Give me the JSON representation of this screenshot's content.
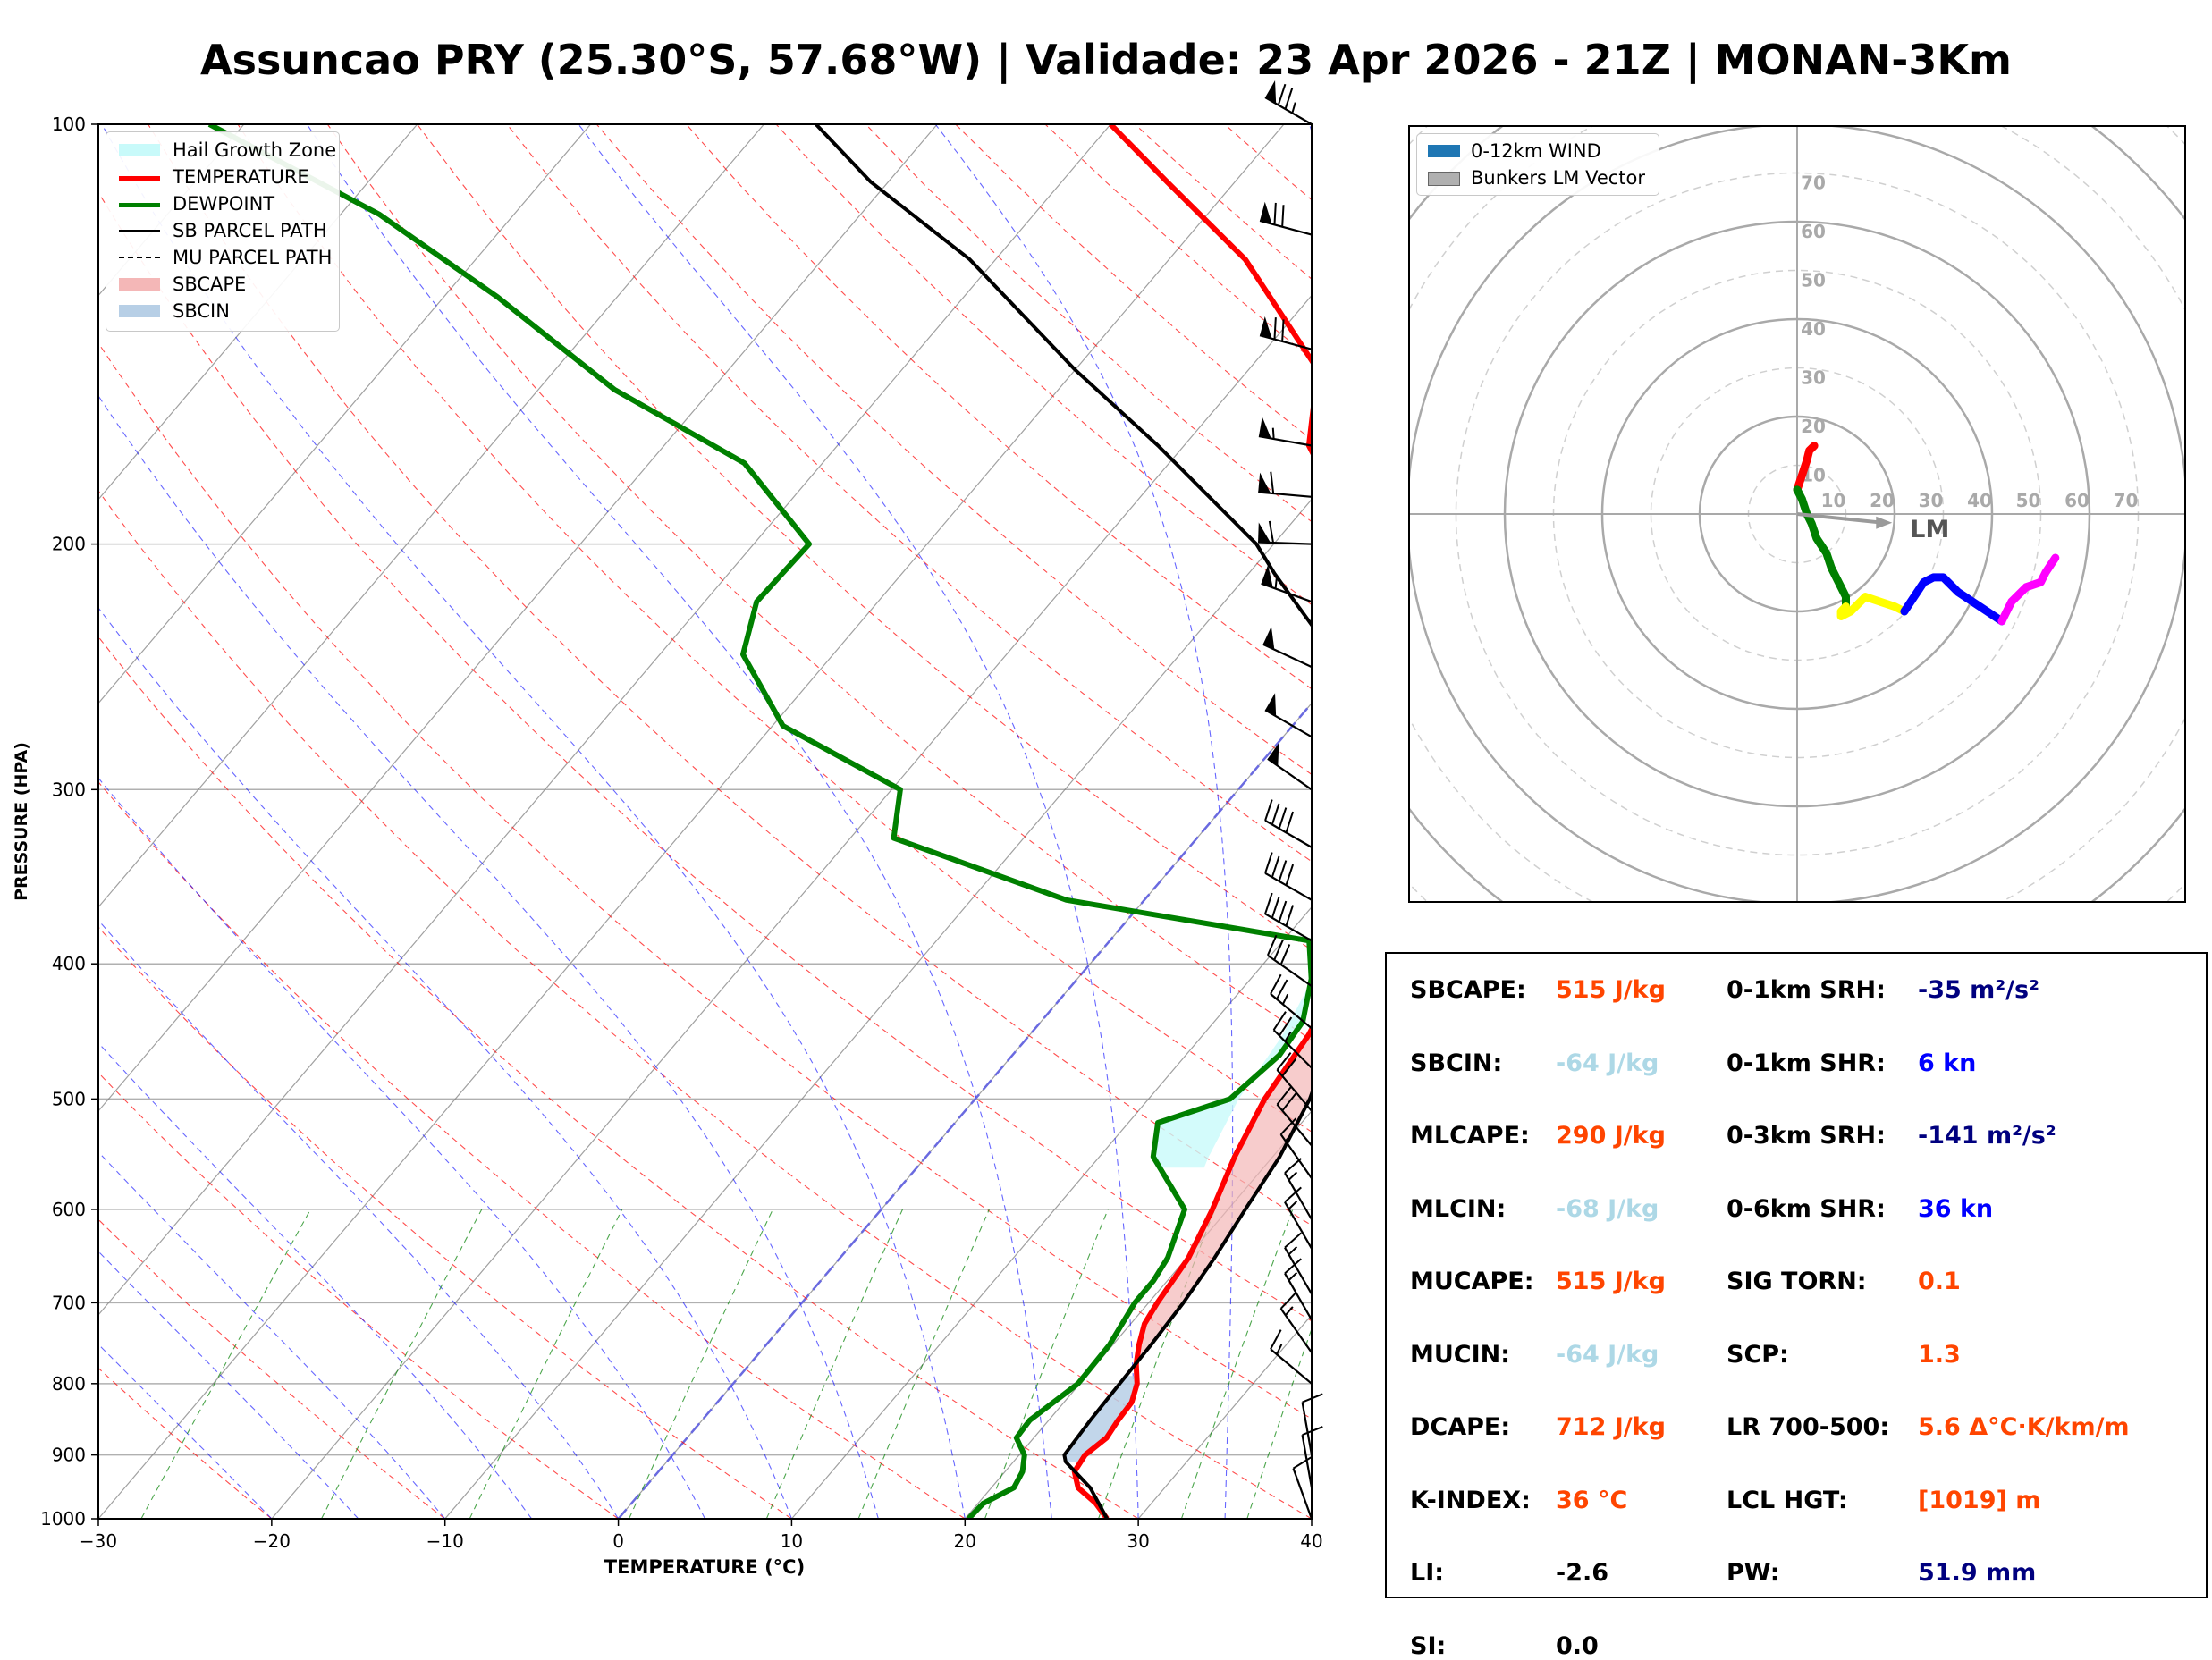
{
  "title": "Assuncao PRY (25.30°S, 57.68°W) | Validade: 23 Apr 2026 - 21Z | MONAN-3Km",
  "colors": {
    "temperature": "#ff0000",
    "dewpoint": "#008000",
    "parcel": "#000000",
    "sbcape": "#f4b7b7",
    "sbcin": "#b7cfe6",
    "hail_zone": "#c8fafa",
    "dry_adiabat": "#ff0000",
    "moist_adiabat": "#0000ff",
    "mixing_ratio": "#008000",
    "isotherm": "#808080",
    "val_orange": "#ff4500",
    "val_lightblue": "#add8e6",
    "val_navy": "#00007f",
    "val_blue": "#0000ff",
    "val_black": "#000000"
  },
  "chart_data": [
    {
      "type": "line",
      "subtype": "skew-T log-P",
      "xlabel": "TEMPERATURE (°C)",
      "ylabel": "PRESSURE (HPA)",
      "xlim": [
        -30,
        40
      ],
      "ylim": [
        1000,
        100
      ],
      "yscale": "log",
      "x_ticks": [
        "−30",
        "−20",
        "−10",
        "0",
        "10",
        "20",
        "30",
        "40"
      ],
      "y_ticks": [
        100,
        200,
        300,
        400,
        500,
        600,
        700,
        800,
        900,
        1000
      ],
      "legend": {
        "position": "top-left",
        "entries": [
          "Hail Growth Zone",
          "TEMPERATURE",
          "DEWPOINT",
          "SB PARCEL PATH",
          "MU PARCEL PATH",
          "SBCAPE",
          "SBCIN"
        ]
      },
      "series": [
        {
          "name": "TEMPERATURE",
          "points": [
            [
              1000,
              28.2
            ],
            [
              975,
              26.8
            ],
            [
              950,
              25.0
            ],
            [
              925,
              24.0
            ],
            [
              900,
              23.8
            ],
            [
              875,
              24.2
            ],
            [
              850,
              24.0
            ],
            [
              825,
              23.9
            ],
            [
              800,
              23.3
            ],
            [
              775,
              22.3
            ],
            [
              750,
              21.5
            ],
            [
              725,
              20.8
            ],
            [
              700,
              20.5
            ],
            [
              650,
              20.1
            ],
            [
              600,
              19.1
            ],
            [
              550,
              17.8
            ],
            [
              500,
              16.7
            ],
            [
              450,
              16.1
            ],
            [
              400,
              14.8
            ],
            [
              350,
              12.5
            ],
            [
              300,
              8.2
            ],
            [
              250,
              2.2
            ],
            [
              210,
              -2.7
            ],
            [
              170,
              -12.8
            ],
            [
              150,
              -16.0
            ],
            [
              125,
              -25.6
            ],
            [
              110,
              -33.9
            ],
            [
              100,
              -40.0
            ]
          ]
        },
        {
          "name": "DEWPOINT",
          "points": [
            [
              1000,
              20.2
            ],
            [
              975,
              20.3
            ],
            [
              950,
              21.3
            ],
            [
              925,
              21.0
            ],
            [
              900,
              20.3
            ],
            [
              875,
              19.0
            ],
            [
              850,
              18.9
            ],
            [
              800,
              19.9
            ],
            [
              750,
              19.8
            ],
            [
              700,
              19.2
            ],
            [
              675,
              19.2
            ],
            [
              650,
              18.9
            ],
            [
              600,
              17.5
            ],
            [
              550,
              13.1
            ],
            [
              520,
              11.7
            ],
            [
              500,
              14.7
            ],
            [
              465,
              15.4
            ],
            [
              440,
              15.1
            ],
            [
              410,
              13.5
            ],
            [
              385,
              11.5
            ],
            [
              360,
              -4.5
            ],
            [
              325,
              -17.5
            ],
            [
              300,
              -19.5
            ],
            [
              270,
              -29.4
            ],
            [
              240,
              -35.2
            ],
            [
              220,
              -37.0
            ],
            [
              200,
              -36.8
            ],
            [
              175,
              -44.5
            ],
            [
              155,
              -55.6
            ],
            [
              133,
              -66.9
            ],
            [
              116,
              -77.8
            ],
            [
              100,
              -92.0
            ]
          ]
        },
        {
          "name": "SB PARCEL PATH",
          "points": [
            [
              1000,
              28.2
            ],
            [
              950,
              25.7
            ],
            [
              910,
              23.0
            ],
            [
              900,
              22.6
            ],
            [
              850,
              22.4
            ],
            [
              800,
              22.3
            ],
            [
              750,
              22.2
            ],
            [
              700,
              22.0
            ],
            [
              650,
              21.6
            ],
            [
              600,
              21.0
            ],
            [
              550,
              20.4
            ],
            [
              500,
              19.3
            ],
            [
              450,
              17.5
            ],
            [
              400,
              14.8
            ],
            [
              350,
              11.2
            ],
            [
              300,
              6.5
            ],
            [
              270,
              2.6
            ],
            [
              250,
              -0.5
            ],
            [
              230,
              -3.5
            ],
            [
              210,
              -8.5
            ],
            [
              200,
              -11.0
            ],
            [
              170,
              -21.5
            ],
            [
              150,
              -30.0
            ],
            [
              125,
              -41.5
            ],
            [
              110,
              -51.0
            ],
            [
              100,
              -57.0
            ]
          ]
        }
      ],
      "barbs": [
        {
          "p": 100,
          "dir": 300,
          "kt": 75
        },
        {
          "p": 120,
          "dir": 285,
          "kt": 70
        },
        {
          "p": 145,
          "dir": 285,
          "kt": 70
        },
        {
          "p": 170,
          "dir": 280,
          "kt": 55
        },
        {
          "p": 185,
          "dir": 275,
          "kt": 60
        },
        {
          "p": 200,
          "dir": 272,
          "kt": 60
        },
        {
          "p": 220,
          "dir": 290,
          "kt": 55
        },
        {
          "p": 245,
          "dir": 295,
          "kt": 50
        },
        {
          "p": 275,
          "dir": 300,
          "kt": 50
        },
        {
          "p": 300,
          "dir": 305,
          "kt": 50
        },
        {
          "p": 330,
          "dir": 300,
          "kt": 40
        },
        {
          "p": 360,
          "dir": 300,
          "kt": 40
        },
        {
          "p": 385,
          "dir": 300,
          "kt": 40
        },
        {
          "p": 415,
          "dir": 305,
          "kt": 30
        },
        {
          "p": 445,
          "dir": 310,
          "kt": 25
        },
        {
          "p": 475,
          "dir": 315,
          "kt": 25
        },
        {
          "p": 510,
          "dir": 320,
          "kt": 20
        },
        {
          "p": 540,
          "dir": 320,
          "kt": 20
        },
        {
          "p": 570,
          "dir": 325,
          "kt": 15
        },
        {
          "p": 610,
          "dir": 330,
          "kt": 15
        },
        {
          "p": 640,
          "dir": 330,
          "kt": 15
        },
        {
          "p": 690,
          "dir": 330,
          "kt": 15
        },
        {
          "p": 720,
          "dir": 330,
          "kt": 15
        },
        {
          "p": 760,
          "dir": 325,
          "kt": 15
        },
        {
          "p": 800,
          "dir": 310,
          "kt": 15
        },
        {
          "p": 900,
          "dir": 350,
          "kt": 10
        },
        {
          "p": 950,
          "dir": 350,
          "kt": 10
        },
        {
          "p": 1000,
          "dir": 340,
          "kt": 10
        }
      ]
    },
    {
      "type": "line",
      "subtype": "hodograph",
      "rings": [
        10,
        20,
        30,
        40,
        50,
        60,
        70
      ],
      "legend": {
        "position": "top-left",
        "entries": [
          "0-12km WIND",
          "Bunkers LM Vector"
        ]
      },
      "lm_label": "LM",
      "lm_vector": [
        19.5,
        -1.8
      ],
      "segments": [
        {
          "color": "#ff0000",
          "uv": [
            [
              0,
              5
            ],
            [
              1,
              8
            ],
            [
              2,
              11
            ],
            [
              2.5,
              13
            ],
            [
              3.5,
              14
            ]
          ]
        },
        {
          "color": "#008000",
          "uv": [
            [
              0,
              5
            ],
            [
              1,
              3
            ],
            [
              2,
              0
            ],
            [
              3,
              -2
            ],
            [
              4,
              -5
            ],
            [
              6,
              -8
            ],
            [
              7,
              -11
            ],
            [
              8,
              -13
            ],
            [
              9,
              -15
            ],
            [
              10,
              -17
            ],
            [
              10,
              -19
            ]
          ]
        },
        {
          "color": "#ffff00",
          "uv": [
            [
              10,
              -19
            ],
            [
              9,
              -20
            ],
            [
              9,
              -21
            ],
            [
              11,
              -20
            ],
            [
              14,
              -17
            ],
            [
              17,
              -18
            ],
            [
              20,
              -19
            ],
            [
              22,
              -20
            ]
          ]
        },
        {
          "color": "#0000ff",
          "uv": [
            [
              22,
              -20
            ],
            [
              24,
              -17
            ],
            [
              26,
              -14
            ],
            [
              28,
              -13
            ],
            [
              30,
              -13
            ],
            [
              31,
              -14
            ],
            [
              33,
              -16
            ],
            [
              36,
              -18
            ],
            [
              39,
              -20
            ],
            [
              42,
              -22
            ]
          ]
        },
        {
          "color": "#ff00ff",
          "uv": [
            [
              42,
              -22
            ],
            [
              44,
              -18
            ],
            [
              47,
              -15
            ],
            [
              50,
              -14
            ],
            [
              51,
              -12
            ],
            [
              53,
              -9
            ]
          ]
        }
      ]
    }
  ],
  "params": {
    "left": [
      {
        "label": "SBCAPE:",
        "value": "515 J/kg",
        "color": "#ff4500"
      },
      {
        "label": "SBCIN:",
        "value": "-64 J/kg",
        "color": "#add8e6"
      },
      {
        "label": "MLCAPE:",
        "value": "290 J/kg",
        "color": "#ff4500"
      },
      {
        "label": "MLCIN:",
        "value": "-68 J/kg",
        "color": "#add8e6"
      },
      {
        "label": "MUCAPE:",
        "value": "515 J/kg",
        "color": "#ff4500"
      },
      {
        "label": "MUCIN:",
        "value": "-64 J/kg",
        "color": "#add8e6"
      },
      {
        "label": "DCAPE:",
        "value": "712 J/kg",
        "color": "#ff4500"
      },
      {
        "label": "K-INDEX:",
        "value": "36 °C",
        "color": "#ff4500"
      },
      {
        "label": "LI:",
        "value": "-2.6",
        "color": "#000000"
      },
      {
        "label": "SI:",
        "value": "0.0",
        "color": "#000000"
      }
    ],
    "right": [
      {
        "label": "0-1km SRH:",
        "value": "-35 m²/s²",
        "color": "#00007f"
      },
      {
        "label": "0-1km SHR:",
        "value": "6 kn",
        "color": "#0000ff"
      },
      {
        "label": "0-3km SRH:",
        "value": "-141 m²/s²",
        "color": "#00007f"
      },
      {
        "label": "0-6km SHR:",
        "value": "36 kn",
        "color": "#0000ff"
      },
      {
        "label": "SIG TORN:",
        "value": "0.1",
        "color": "#ff4500"
      },
      {
        "label": "SCP:",
        "value": "1.3",
        "color": "#ff4500"
      },
      {
        "label": "LR 700-500:",
        "value": "5.6 Δ°C·K/km/m",
        "color": "#ff4500"
      },
      {
        "label": "LCL HGT:",
        "value": "[1019] m",
        "color": "#ff4500"
      },
      {
        "label": "PW:",
        "value": "51.9 mm",
        "color": "#00007f"
      }
    ]
  }
}
